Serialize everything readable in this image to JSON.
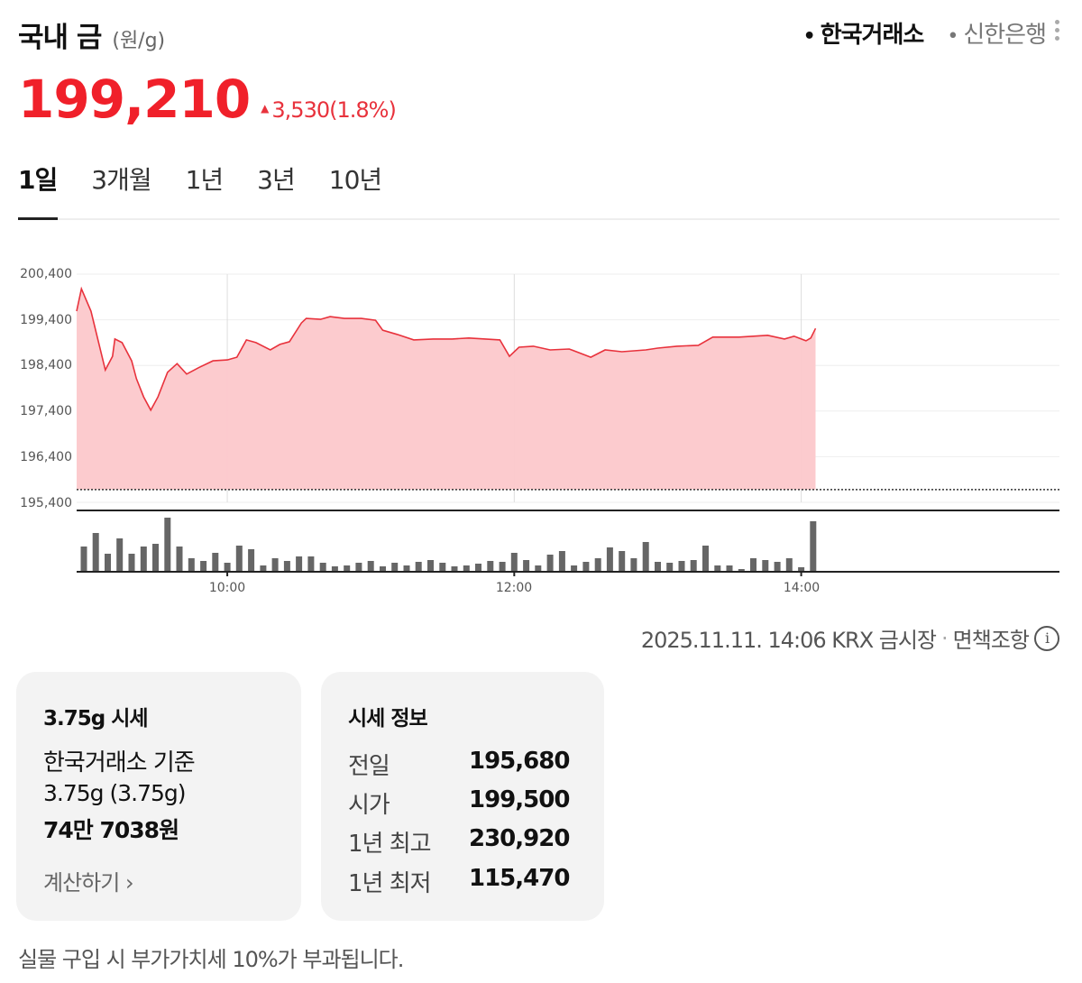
{
  "header": {
    "title": "국내 금",
    "unit": "(원/g)",
    "price": "199,210",
    "change_arrow": "▲",
    "change": "3,530",
    "change_pct": "(1.8%)",
    "sources": [
      {
        "label": "한국거래소",
        "active": true
      },
      {
        "label": "신한은행",
        "active": false
      }
    ],
    "more_icon": "kebab-menu-icon"
  },
  "tabs": [
    {
      "label": "1일",
      "active": true
    },
    {
      "label": "3개월",
      "active": false
    },
    {
      "label": "1년",
      "active": false
    },
    {
      "label": "3년",
      "active": false
    },
    {
      "label": "10년",
      "active": false
    }
  ],
  "colors": {
    "up": "#f0202a",
    "area_fill": "#fcc8cb",
    "line": "#e8323c",
    "volume": "#666666"
  },
  "chart_data": {
    "type": "area",
    "y_ticks": [
      "200,400",
      "199,400",
      "198,400",
      "197,400",
      "196,400",
      "195,400"
    ],
    "ylim": [
      195400,
      200400
    ],
    "x_ticks": [
      "10:00",
      "12:00",
      "14:00"
    ],
    "xlim": [
      "08:57",
      "15:48"
    ],
    "previous_close": 195680,
    "grid": true,
    "price": {
      "x": [
        "08:57",
        "08:59",
        "09:03",
        "09:09",
        "09:12",
        "09:13",
        "09:16",
        "09:20",
        "09:22",
        "09:25",
        "09:28",
        "09:31",
        "09:35",
        "09:39",
        "09:43",
        "09:48",
        "09:54",
        "10:00",
        "10:04",
        "10:08",
        "10:12",
        "10:18",
        "10:22",
        "10:26",
        "10:31",
        "10:33",
        "10:39",
        "10:43",
        "10:49",
        "10:56",
        "11:02",
        "11:05",
        "11:11",
        "11:18",
        "11:26",
        "11:34",
        "11:41",
        "11:54",
        "11:58",
        "12:02",
        "12:08",
        "12:15",
        "12:23",
        "12:32",
        "12:38",
        "12:45",
        "12:55",
        "13:00",
        "13:08",
        "13:17",
        "13:23",
        "13:34",
        "13:46",
        "13:53",
        "13:57",
        "14:02",
        "14:04",
        "14:06"
      ],
      "y": [
        199590,
        200080,
        199590,
        198300,
        198600,
        198980,
        198900,
        198500,
        198110,
        197710,
        197420,
        197710,
        198250,
        198440,
        198210,
        198350,
        198500,
        198520,
        198580,
        198960,
        198900,
        198740,
        198860,
        198920,
        199330,
        199430,
        199410,
        199470,
        199430,
        199430,
        199390,
        199170,
        199080,
        198960,
        198980,
        198980,
        199000,
        198960,
        198600,
        198800,
        198820,
        198740,
        198760,
        198580,
        198740,
        198700,
        198740,
        198780,
        198820,
        198840,
        199020,
        199020,
        199060,
        198980,
        199040,
        198940,
        199000,
        199210
      ]
    },
    "volume": {
      "start": "09:00",
      "interval_min": 5,
      "values": [
        28,
        43,
        20,
        37,
        20,
        28,
        31,
        60,
        28,
        15,
        12,
        21,
        10,
        29,
        25,
        7,
        15,
        12,
        17,
        17,
        10,
        6,
        7,
        10,
        12,
        6,
        10,
        7,
        11,
        13,
        10,
        6,
        7,
        9,
        12,
        11,
        21,
        13,
        7,
        19,
        23,
        7,
        11,
        15,
        27,
        23,
        15,
        33,
        11,
        10,
        12,
        13,
        29,
        7,
        7,
        3,
        15,
        13,
        11,
        15,
        5,
        56
      ]
    }
  },
  "timestamp": {
    "text": "2025.11.11. 14:06 KRX 금시장",
    "sep": "·",
    "disclaimer": "면책조항",
    "info_icon": "i"
  },
  "card_price": {
    "title": "3.75g 시세",
    "basis": "한국거래소 기준",
    "weight": "3.75g (3.75g)",
    "amount": "74만 7038원",
    "calc_label": "계산하기",
    "calc_chevron": "›"
  },
  "card_info": {
    "title": "시세 정보",
    "rows": [
      {
        "label": "전일",
        "value": "195,680"
      },
      {
        "label": "시가",
        "value": "199,500"
      },
      {
        "label": "1년 최고",
        "value": "230,920"
      },
      {
        "label": "1년 최저",
        "value": "115,470"
      }
    ]
  },
  "footer": "실물 구입 시 부가가치세 10%가 부과됩니다."
}
